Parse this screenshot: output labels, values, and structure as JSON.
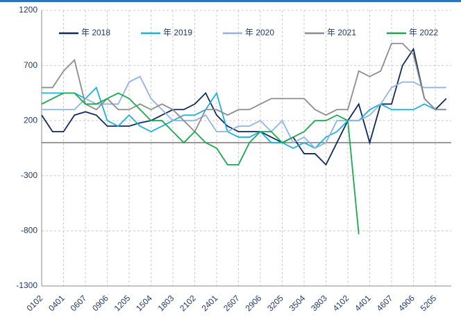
{
  "chart_data": {
    "type": "line",
    "categories": [
      "0102",
      null,
      "0401",
      null,
      "0607",
      null,
      "0906",
      null,
      "1205",
      null,
      "1504",
      null,
      "1803",
      null,
      "2102",
      null,
      "2401",
      null,
      "2607",
      null,
      "2906",
      null,
      "3205",
      null,
      "3504",
      null,
      "3803",
      null,
      "4102",
      null,
      "4401",
      null,
      "4607",
      null,
      "4906",
      null,
      "5205",
      null
    ],
    "series": [
      {
        "name": "年 2018",
        "color": "#0d2a5e",
        "values": [
          250,
          100,
          100,
          250,
          280,
          250,
          150,
          150,
          150,
          180,
          200,
          250,
          300,
          300,
          350,
          450,
          250,
          150,
          100,
          100,
          100,
          50,
          0,
          50,
          -100,
          -100,
          -200,
          0,
          200,
          350,
          0,
          350,
          350,
          700,
          850,
          400,
          300,
          400
        ]
      },
      {
        "name": "年 2019",
        "color": "#1ab0e0",
        "values": [
          450,
          450,
          450,
          450,
          400,
          500,
          200,
          150,
          250,
          150,
          100,
          150,
          200,
          250,
          250,
          300,
          450,
          100,
          50,
          50,
          100,
          0,
          0,
          -50,
          0,
          -50,
          50,
          100,
          200,
          200,
          300,
          350,
          300,
          300,
          300,
          350,
          300,
          300
        ]
      },
      {
        "name": "年 2020",
        "color": "#8fb4e3",
        "values": [
          300,
          300,
          300,
          300,
          400,
          350,
          350,
          350,
          550,
          600,
          400,
          300,
          200,
          200,
          200,
          250,
          100,
          100,
          150,
          150,
          200,
          100,
          200,
          0,
          50,
          -50,
          0,
          200,
          200,
          200,
          250,
          350,
          500,
          550,
          550,
          500,
          500,
          500
        ]
      },
      {
        "name": "年 2021",
        "color": "#8c8c8c",
        "values": [
          500,
          500,
          650,
          750,
          350,
          300,
          400,
          300,
          300,
          350,
          300,
          350,
          300,
          200,
          100,
          300,
          300,
          250,
          300,
          300,
          350,
          400,
          400,
          400,
          400,
          300,
          250,
          300,
          300,
          650,
          600,
          650,
          900,
          900,
          800,
          400,
          300,
          300
        ]
      },
      {
        "name": "年 2022",
        "color": "#1aa84c",
        "values": [
          350,
          400,
          450,
          450,
          350,
          350,
          400,
          450,
          400,
          300,
          200,
          200,
          100,
          0,
          100,
          0,
          -50,
          -200,
          -200,
          0,
          100,
          100,
          0,
          50,
          100,
          200,
          200,
          250,
          200,
          -830,
          null,
          null,
          null,
          null,
          null,
          null,
          null,
          null
        ]
      }
    ],
    "ylim": [
      -1300,
      1200
    ],
    "yticks": [
      -1300,
      -800,
      -300,
      200,
      700,
      1200
    ],
    "grid": true,
    "legend": "top"
  }
}
